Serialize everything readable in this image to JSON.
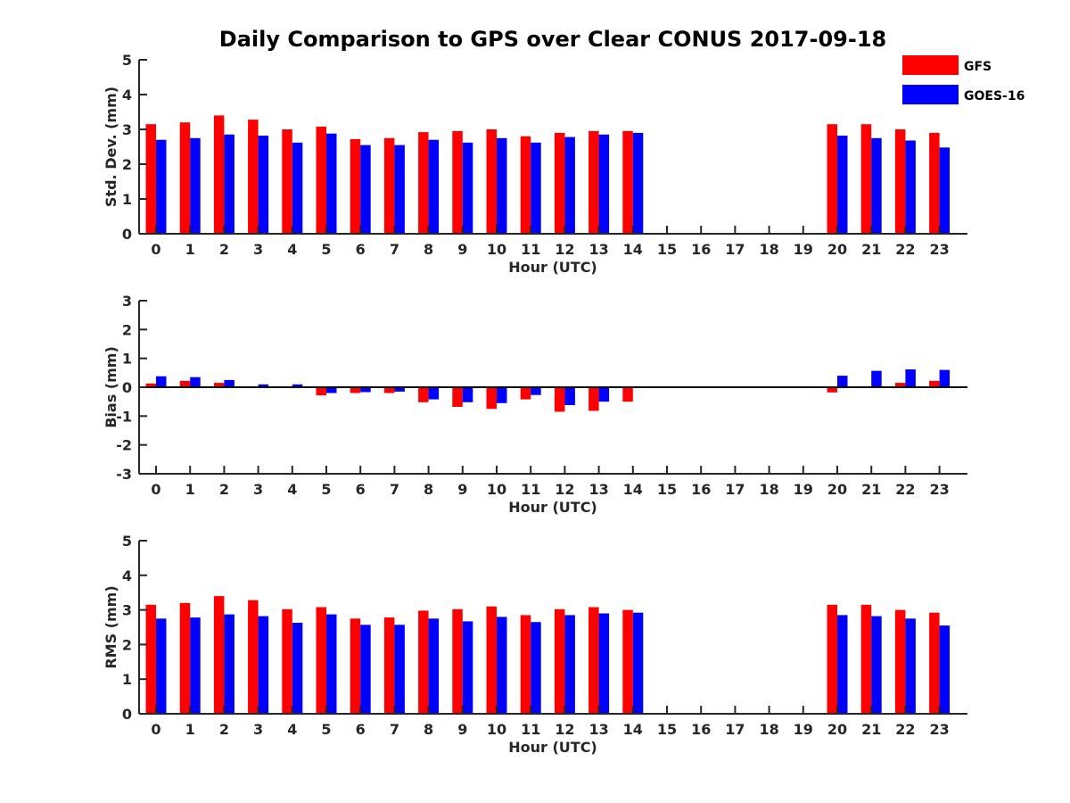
{
  "title": "Daily Comparison to GPS over Clear CONUS 2017-09-18",
  "colors": {
    "GFS": "#ff0000",
    "GOES-16": "#0000ff"
  },
  "legend": [
    "GFS",
    "GOES-16"
  ],
  "chart_data": [
    {
      "type": "bar",
      "title": "Daily Comparison to GPS over Clear CONUS 2017-09-18",
      "xlabel": "Hour (UTC)",
      "ylabel": "Std. Dev. (mm)",
      "ylim": [
        0,
        5
      ],
      "yticks": [
        0,
        1,
        2,
        3,
        4,
        5
      ],
      "categories": [
        "0",
        "1",
        "2",
        "3",
        "4",
        "5",
        "6",
        "7",
        "8",
        "9",
        "10",
        "11",
        "12",
        "13",
        "14",
        "15",
        "16",
        "17",
        "18",
        "19",
        "20",
        "21",
        "22",
        "23"
      ],
      "series": [
        {
          "name": "GFS",
          "values": [
            3.15,
            3.2,
            3.4,
            3.28,
            3.0,
            3.08,
            2.72,
            2.75,
            2.92,
            2.95,
            3.0,
            2.8,
            2.9,
            2.95,
            2.95,
            null,
            null,
            null,
            null,
            null,
            3.15,
            3.15,
            3.0,
            2.9
          ]
        },
        {
          "name": "GOES-16",
          "values": [
            2.7,
            2.75,
            2.85,
            2.82,
            2.62,
            2.88,
            2.55,
            2.55,
            2.7,
            2.62,
            2.75,
            2.62,
            2.78,
            2.85,
            2.9,
            null,
            null,
            null,
            null,
            null,
            2.82,
            2.75,
            2.68,
            2.48
          ]
        }
      ]
    },
    {
      "type": "bar",
      "xlabel": "Hour (UTC)",
      "ylabel": "Bias (mm)",
      "ylim": [
        -3,
        3
      ],
      "yticks": [
        -3,
        -2,
        -1,
        0,
        1,
        2,
        3
      ],
      "categories": [
        "0",
        "1",
        "2",
        "3",
        "4",
        "5",
        "6",
        "7",
        "8",
        "9",
        "10",
        "11",
        "12",
        "13",
        "14",
        "15",
        "16",
        "17",
        "18",
        "19",
        "20",
        "21",
        "22",
        "23"
      ],
      "series": [
        {
          "name": "GFS",
          "values": [
            0.13,
            0.22,
            0.15,
            0.0,
            0.0,
            -0.28,
            -0.2,
            -0.2,
            -0.52,
            -0.68,
            -0.75,
            -0.42,
            -0.85,
            -0.82,
            -0.5,
            null,
            null,
            null,
            null,
            null,
            -0.18,
            0.03,
            0.15,
            0.22
          ]
        },
        {
          "name": "GOES-16",
          "values": [
            0.38,
            0.35,
            0.25,
            0.1,
            0.1,
            -0.2,
            -0.17,
            -0.15,
            -0.42,
            -0.52,
            -0.55,
            -0.27,
            -0.62,
            -0.5,
            0.03,
            null,
            null,
            null,
            null,
            null,
            0.4,
            0.57,
            0.62,
            0.6
          ]
        }
      ]
    },
    {
      "type": "bar",
      "xlabel": "Hour (UTC)",
      "ylabel": "RMS (mm)",
      "ylim": [
        0,
        5
      ],
      "yticks": [
        0,
        1,
        2,
        3,
        4,
        5
      ],
      "categories": [
        "0",
        "1",
        "2",
        "3",
        "4",
        "5",
        "6",
        "7",
        "8",
        "9",
        "10",
        "11",
        "12",
        "13",
        "14",
        "15",
        "16",
        "17",
        "18",
        "19",
        "20",
        "21",
        "22",
        "23"
      ],
      "series": [
        {
          "name": "GFS",
          "values": [
            3.15,
            3.2,
            3.4,
            3.28,
            3.02,
            3.08,
            2.75,
            2.78,
            2.98,
            3.02,
            3.1,
            2.85,
            3.02,
            3.08,
            3.0,
            null,
            null,
            null,
            null,
            null,
            3.15,
            3.15,
            3.0,
            2.92
          ]
        },
        {
          "name": "GOES-16",
          "values": [
            2.75,
            2.78,
            2.87,
            2.82,
            2.63,
            2.87,
            2.57,
            2.57,
            2.75,
            2.67,
            2.8,
            2.65,
            2.85,
            2.9,
            2.92,
            null,
            null,
            null,
            null,
            null,
            2.85,
            2.82,
            2.75,
            2.55
          ]
        }
      ]
    }
  ]
}
